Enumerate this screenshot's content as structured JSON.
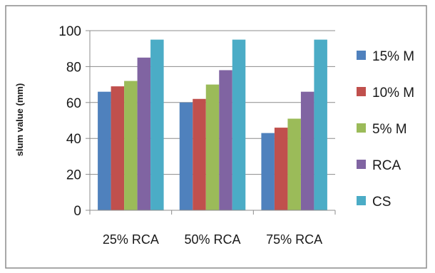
{
  "chart_data": {
    "type": "bar",
    "title": "",
    "xlabel": "",
    "ylabel": "slum value (mm)",
    "ylim": [
      0,
      100
    ],
    "yticks": [
      0,
      20,
      40,
      60,
      80,
      100
    ],
    "grid": "horizontal",
    "legend_position": "right",
    "categories": [
      "25% RCA",
      "50% RCA",
      "75% RCA"
    ],
    "series": [
      {
        "name": "15% M",
        "color": "#4f81bd",
        "values": [
          66,
          60,
          43
        ]
      },
      {
        "name": "10% M",
        "color": "#c0504d",
        "values": [
          69,
          62,
          46
        ]
      },
      {
        "name": "5% M",
        "color": "#9bbb59",
        "values": [
          72,
          70,
          51
        ]
      },
      {
        "name": "RCA",
        "color": "#8064a2",
        "values": [
          85,
          78,
          66
        ]
      },
      {
        "name": "CS",
        "color": "#4bacc6",
        "values": [
          95,
          95,
          95
        ]
      }
    ]
  }
}
